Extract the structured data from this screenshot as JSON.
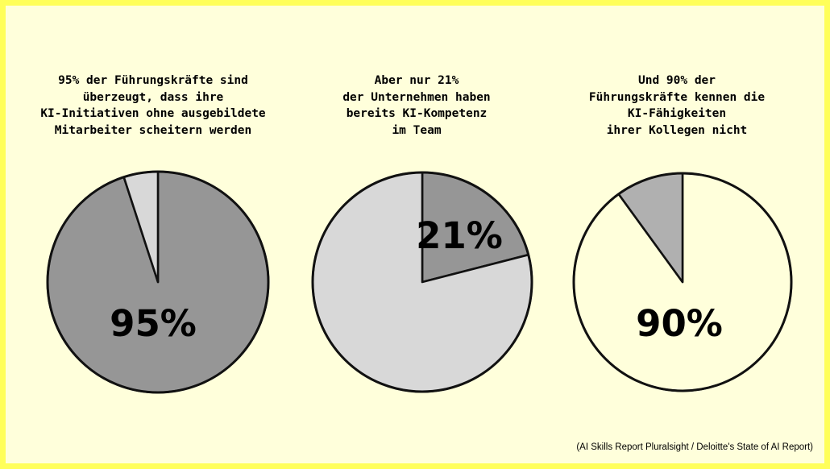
{
  "colors": {
    "border": "#ffff5a",
    "background": "#ffffdb",
    "dark_slice": "#969696",
    "light_slice": "#d8d8d8",
    "mid_slice": "#b0b0b0",
    "empty": "#ffffdb",
    "outline": "#111111"
  },
  "chart_data": [
    {
      "type": "pie",
      "title_lines": [
        "95% der Führungskräfte sind",
        "überzeugt, dass ihre",
        "KI-Initiativen ohne ausgebildete",
        "Mitarbeiter scheitern werden"
      ],
      "label": "95%",
      "slices": [
        {
          "value": 95,
          "color": "#969696"
        },
        {
          "value": 5,
          "color": "#d8d8d8"
        }
      ]
    },
    {
      "type": "pie",
      "title_lines": [
        "Aber nur 21%",
        "der Unternehmen haben",
        "bereits KI-Kompetenz",
        "im Team"
      ],
      "label": "21%",
      "slices": [
        {
          "value": 21,
          "color": "#969696"
        },
        {
          "value": 79,
          "color": "#d8d8d8"
        }
      ]
    },
    {
      "type": "pie",
      "title_lines": [
        "Und 90% der",
        "Führungskräfte kennen die",
        "KI-Fähigkeiten",
        "ihrer Kollegen nicht"
      ],
      "label": "90%",
      "slices": [
        {
          "value": 90,
          "color": "#ffffdb"
        },
        {
          "value": 10,
          "color": "#b0b0b0"
        }
      ]
    }
  ],
  "source": "(AI Skills Report Pluralsight / Deloitte's State of AI Report)"
}
